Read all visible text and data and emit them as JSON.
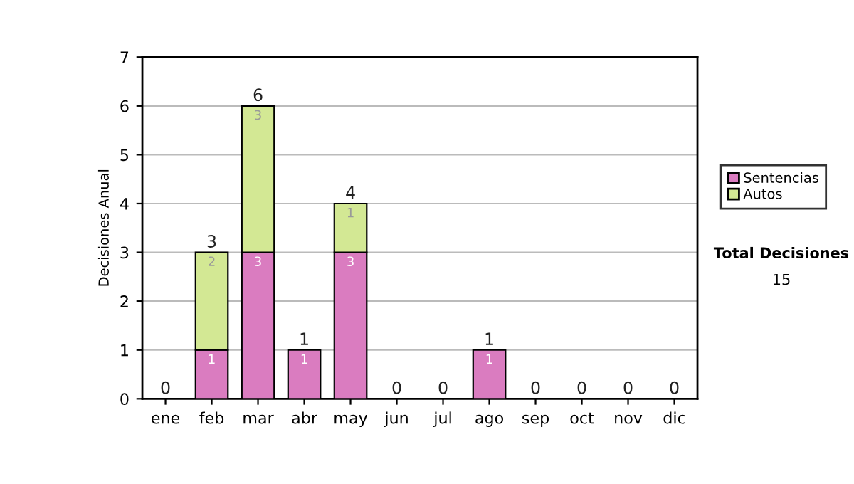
{
  "chart_data": {
    "type": "bar",
    "ylabel": "Decisiones Anual",
    "stacked": true,
    "categories": [
      "ene",
      "feb",
      "mar",
      "abr",
      "may",
      "jun",
      "jul",
      "ago",
      "sep",
      "oct",
      "nov",
      "dic"
    ],
    "series": [
      {
        "name": "Sentencias",
        "color": "#da7cc0",
        "values": [
          0,
          1,
          3,
          1,
          3,
          0,
          0,
          1,
          0,
          0,
          0,
          0
        ],
        "value_labels": [
          null,
          "1",
          "3",
          "1",
          "3",
          null,
          null,
          "1",
          null,
          null,
          null,
          null
        ]
      },
      {
        "name": "Autos",
        "color": "#d3e894",
        "values": [
          0,
          2,
          3,
          0,
          1,
          0,
          0,
          0,
          0,
          0,
          0,
          0
        ],
        "value_labels": [
          null,
          "2",
          "3",
          null,
          "1",
          null,
          null,
          null,
          null,
          null,
          null,
          null
        ]
      }
    ],
    "totals": [
      "0",
      "3",
      "6",
      "1",
      "4",
      "0",
      "0",
      "1",
      "0",
      "0",
      "0",
      "0"
    ],
    "ylim": [
      0,
      7
    ],
    "yticks": [
      0,
      1,
      2,
      3,
      4,
      5,
      6,
      7
    ],
    "grid": "y",
    "legend": "right",
    "annotations": [
      "Total Decisiones",
      "15"
    ]
  }
}
